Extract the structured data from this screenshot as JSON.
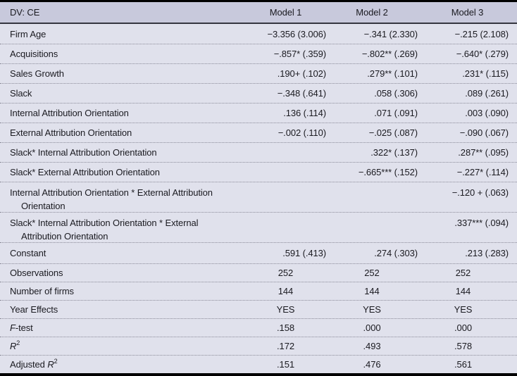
{
  "table": {
    "header": {
      "dv_label": "DV: CE",
      "columns": [
        "Model 1",
        "Model 2",
        "Model 3"
      ]
    },
    "rows": [
      {
        "type": "single",
        "align": "right",
        "pre": "Firm Age",
        "cells": [
          "−3.356 (3.006)",
          "−.341 (2.330)",
          "−.215 (2.108)"
        ]
      },
      {
        "type": "single",
        "align": "right",
        "pre": "Acquisitions",
        "cells": [
          "−.857* (.359)",
          "−.802** (.269)",
          "−.640* (.279)"
        ]
      },
      {
        "type": "single",
        "align": "right",
        "pre": "Sales Growth",
        "cells": [
          ".190+ (.102)",
          ".279** (.101)",
          ".231* (.115)"
        ]
      },
      {
        "type": "single",
        "align": "right",
        "pre": "Slack",
        "cells": [
          "−.348 (.641)",
          ".058 (.306)",
          ".089 (.261)"
        ]
      },
      {
        "type": "single",
        "align": "right",
        "pre": "Internal Attribution Orientation",
        "cells": [
          ".136 (.114)",
          ".071 (.091)",
          ".003 (.090)"
        ]
      },
      {
        "type": "single",
        "align": "right",
        "pre": "External Attribution Orientation",
        "cells": [
          "−.002 (.110)",
          "−.025 (.087)",
          "−.090 (.067)"
        ]
      },
      {
        "type": "single",
        "align": "right",
        "pre": "Slack* Internal Attribution Orientation",
        "cells": [
          "",
          ".322* (.137)",
          ".287** (.095)"
        ]
      },
      {
        "type": "single",
        "align": "right",
        "pre": "Slack* External Attribution Orientation",
        "cells": [
          "",
          "−.665*** (.152)",
          "−.227* (.114)"
        ]
      },
      {
        "type": "double",
        "align": "right",
        "pre": "Internal Attribution Orientation * External Attribution",
        "cont": "Orientation",
        "cells": [
          "",
          "",
          "−.120 + (.063)"
        ]
      },
      {
        "type": "double",
        "align": "right",
        "pre": "Slack* Internal Attribution Orientation * External",
        "cont": "Attribution Orientation",
        "cells": [
          "",
          "",
          ".337*** (.094)"
        ]
      },
      {
        "type": "constant",
        "align": "right",
        "pre": "Constant",
        "cells": [
          ".591 (.413)",
          ".274 (.303)",
          ".213 (.283)"
        ]
      },
      {
        "type": "stat",
        "align": "center",
        "pre": "Observations",
        "cells": [
          "252",
          "252",
          "252"
        ]
      },
      {
        "type": "stat",
        "align": "center",
        "pre": "Number of firms",
        "cells": [
          "144",
          "144",
          "144"
        ]
      },
      {
        "type": "stat",
        "align": "center",
        "pre": "Year Effects",
        "cells": [
          "YES",
          "YES",
          "YES"
        ]
      },
      {
        "type": "stat",
        "align": "center",
        "pre": "",
        "italic": "F",
        "post": "-test",
        "cells": [
          ".158",
          ".000",
          ".000"
        ]
      },
      {
        "type": "stat",
        "align": "center",
        "pre": "",
        "italic": "R",
        "sup": "2",
        "post": "",
        "cells": [
          ".172",
          ".493",
          ".578"
        ]
      },
      {
        "type": "stat",
        "align": "center",
        "pre": "Adjusted ",
        "italic": "R",
        "sup": "2",
        "post": "",
        "cells": [
          ".151",
          ".476",
          ".561"
        ]
      }
    ],
    "colors": {
      "header_bg": "#c8c9dc",
      "body_bg": "#e0e1ec",
      "frame_border": "#000000",
      "row_divider": "#8b8b99",
      "header_underline": "#35353f",
      "text": "#1a1a20"
    }
  }
}
